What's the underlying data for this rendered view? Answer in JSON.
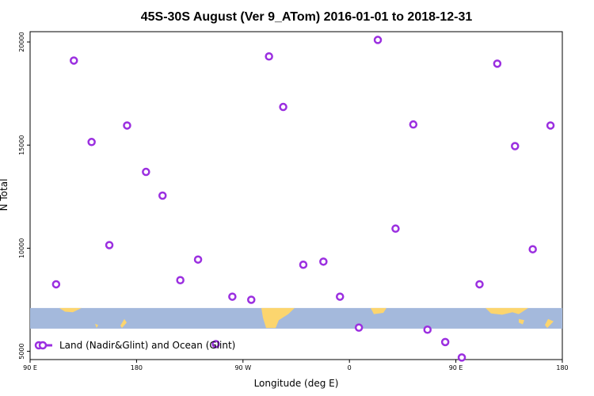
{
  "chart_data": {
    "type": "scatter",
    "title": "45S-30S August (Ver 9_ATom)   2016-01-01 to 2018-12-31",
    "xlabel": "Longitude (deg E)",
    "ylabel": "N Total",
    "x_ticks": [
      {
        "value": 90,
        "label": "90 E"
      },
      {
        "value": 180,
        "label": "180"
      },
      {
        "value": 270,
        "label": "90 W"
      },
      {
        "value": 360,
        "label": "0"
      },
      {
        "value": 450,
        "label": "90 E"
      },
      {
        "value": 540,
        "label": "180"
      }
    ],
    "y_ticks": [
      {
        "value": 5000,
        "label": "5000"
      },
      {
        "value": 10000,
        "label": "10000"
      },
      {
        "value": 15000,
        "label": "15000"
      },
      {
        "value": 20000,
        "label": "20000"
      }
    ],
    "xlim": [
      90,
      540
    ],
    "ylim": [
      4600,
      20500
    ],
    "series": [
      {
        "name": "Land (Nadir&Glint) and Ocean (Glint)",
        "color": "#9b2fe0",
        "marker": "ring",
        "points": [
          {
            "x": 112,
            "y": 8250
          },
          {
            "x": 127,
            "y": 19100
          },
          {
            "x": 142,
            "y": 15150
          },
          {
            "x": 157,
            "y": 10150
          },
          {
            "x": 172,
            "y": 15950
          },
          {
            "x": 188,
            "y": 13700
          },
          {
            "x": 202,
            "y": 12550
          },
          {
            "x": 217,
            "y": 8450
          },
          {
            "x": 232,
            "y": 9450
          },
          {
            "x": 247,
            "y": 5350
          },
          {
            "x": 261,
            "y": 7650
          },
          {
            "x": 277,
            "y": 7500
          },
          {
            "x": 292,
            "y": 19300
          },
          {
            "x": 304,
            "y": 16850
          },
          {
            "x": 321,
            "y": 9200
          },
          {
            "x": 338,
            "y": 9350
          },
          {
            "x": 352,
            "y": 7650
          },
          {
            "x": 368,
            "y": 6150
          },
          {
            "x": 384,
            "y": 20100
          },
          {
            "x": 399,
            "y": 10950
          },
          {
            "x": 414,
            "y": 16000
          },
          {
            "x": 426,
            "y": 6050
          },
          {
            "x": 441,
            "y": 5450
          },
          {
            "x": 455,
            "y": 4700
          },
          {
            "x": 470,
            "y": 8250
          },
          {
            "x": 485,
            "y": 18950
          },
          {
            "x": 500,
            "y": 14950
          },
          {
            "x": 515,
            "y": 9950
          },
          {
            "x": 530,
            "y": 15950
          }
        ]
      }
    ],
    "legend": {
      "label": "Land (Nadir&Glint) and Ocean (Glint)",
      "placement": "bottom-left"
    },
    "inset_map": {
      "ocean_color": "#a4b9dc",
      "land_color": "#fcd56e",
      "y_range": [
        6100,
        7100
      ]
    },
    "grid": false
  }
}
